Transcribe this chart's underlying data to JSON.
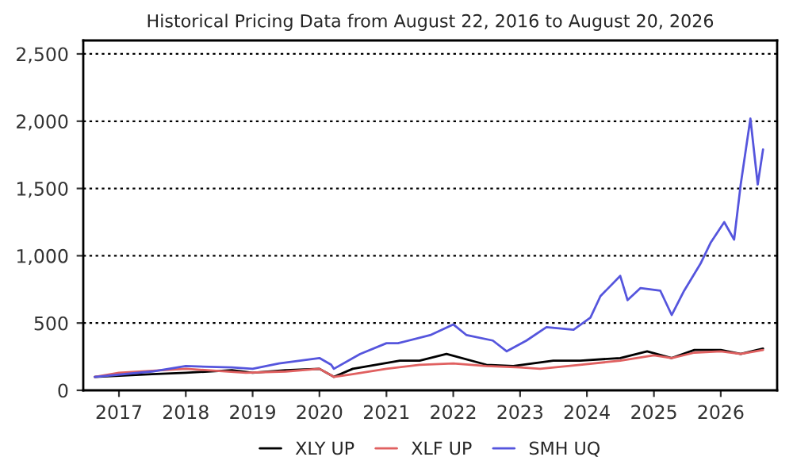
{
  "chart_data": {
    "type": "line",
    "title": "Historical Pricing Data from August 22, 2016 to August 20, 2026",
    "xlim": [
      "2016-06-20",
      "2026-11-05"
    ],
    "ylim": [
      0,
      2600
    ],
    "xticks": [
      {
        "value": "2017-01-01",
        "label": "2017"
      },
      {
        "value": "2018-01-01",
        "label": "2018"
      },
      {
        "value": "2019-01-01",
        "label": "2019"
      },
      {
        "value": "2020-01-01",
        "label": "2020"
      },
      {
        "value": "2021-01-01",
        "label": "2021"
      },
      {
        "value": "2022-01-01",
        "label": "2022"
      },
      {
        "value": "2023-01-01",
        "label": "2023"
      },
      {
        "value": "2024-01-01",
        "label": "2024"
      },
      {
        "value": "2025-01-01",
        "label": "2025"
      },
      {
        "value": "2026-01-01",
        "label": "2026"
      }
    ],
    "yticks": [
      0,
      500,
      {
        "value": 1000,
        "label": "1,000"
      },
      {
        "value": 1500,
        "label": "1,500"
      },
      {
        "value": 2000,
        "label": "2,000"
      },
      {
        "value": 2500,
        "label": "2,500"
      }
    ],
    "grid": "y",
    "legend": "bottom",
    "marker": "none",
    "line_style": "solid",
    "series": [
      {
        "name": "XLY UP",
        "color": "#000000",
        "x": [
          "2016-08-22",
          "2017-07-01",
          "2018-01-01",
          "2018-09-10",
          "2019-01-01",
          "2019-07-01",
          "2020-01-01",
          "2020-03-20",
          "2020-07-01",
          "2021-03-15",
          "2021-07-01",
          "2021-11-25",
          "2022-07-01",
          "2022-11-25",
          "2023-07-01",
          "2023-11-25",
          "2024-07-01",
          "2024-11-25",
          "2025-04-08",
          "2025-08-10",
          "2026-01-01",
          "2026-04-20",
          "2026-08-20"
        ],
        "values": [
          100,
          120,
          130,
          150,
          130,
          150,
          160,
          100,
          160,
          220,
          220,
          270,
          190,
          180,
          220,
          220,
          240,
          290,
          240,
          300,
          300,
          270,
          310
        ]
      },
      {
        "name": "XLF UP",
        "color": "#e06060",
        "x": [
          "2016-08-22",
          "2017-01-01",
          "2018-01-01",
          "2018-11-25",
          "2019-07-01",
          "2020-01-01",
          "2020-03-20",
          "2020-07-01",
          "2021-01-01",
          "2021-07-01",
          "2022-01-01",
          "2022-07-01",
          "2023-01-01",
          "2023-04-20",
          "2023-11-25",
          "2024-07-01",
          "2025-01-01",
          "2025-04-08",
          "2025-08-10",
          "2026-01-01",
          "2026-04-20",
          "2026-08-20"
        ],
        "values": [
          100,
          130,
          160,
          130,
          140,
          160,
          100,
          120,
          160,
          190,
          200,
          180,
          170,
          160,
          190,
          220,
          260,
          240,
          280,
          290,
          270,
          300
        ]
      },
      {
        "name": "SMH UQ",
        "color": "#5555dd",
        "x": [
          "2016-08-22",
          "2017-07-01",
          "2018-01-01",
          "2018-09-10",
          "2019-01-01",
          "2019-05-25",
          "2020-01-01",
          "2020-03-05",
          "2020-03-20",
          "2020-08-10",
          "2021-01-01",
          "2021-03-05",
          "2021-08-28",
          "2022-01-01",
          "2022-03-15",
          "2022-08-05",
          "2022-10-20",
          "2023-02-05",
          "2023-05-25",
          "2023-10-20",
          "2024-01-20",
          "2024-03-15",
          "2024-07-01",
          "2024-08-10",
          "2024-10-20",
          "2025-02-05",
          "2025-04-08",
          "2025-06-15",
          "2025-09-12",
          "2025-11-08",
          "2026-01-20",
          "2026-03-15",
          "2026-04-20",
          "2026-06-12",
          "2026-07-22",
          "2026-08-20"
        ],
        "values": [
          100,
          140,
          180,
          170,
          160,
          200,
          240,
          190,
          160,
          270,
          350,
          350,
          410,
          490,
          410,
          370,
          290,
          370,
          470,
          450,
          540,
          700,
          850,
          670,
          760,
          740,
          560,
          740,
          940,
          1100,
          1250,
          1120,
          1530,
          2020,
          1530,
          1790
        ]
      }
    ]
  }
}
